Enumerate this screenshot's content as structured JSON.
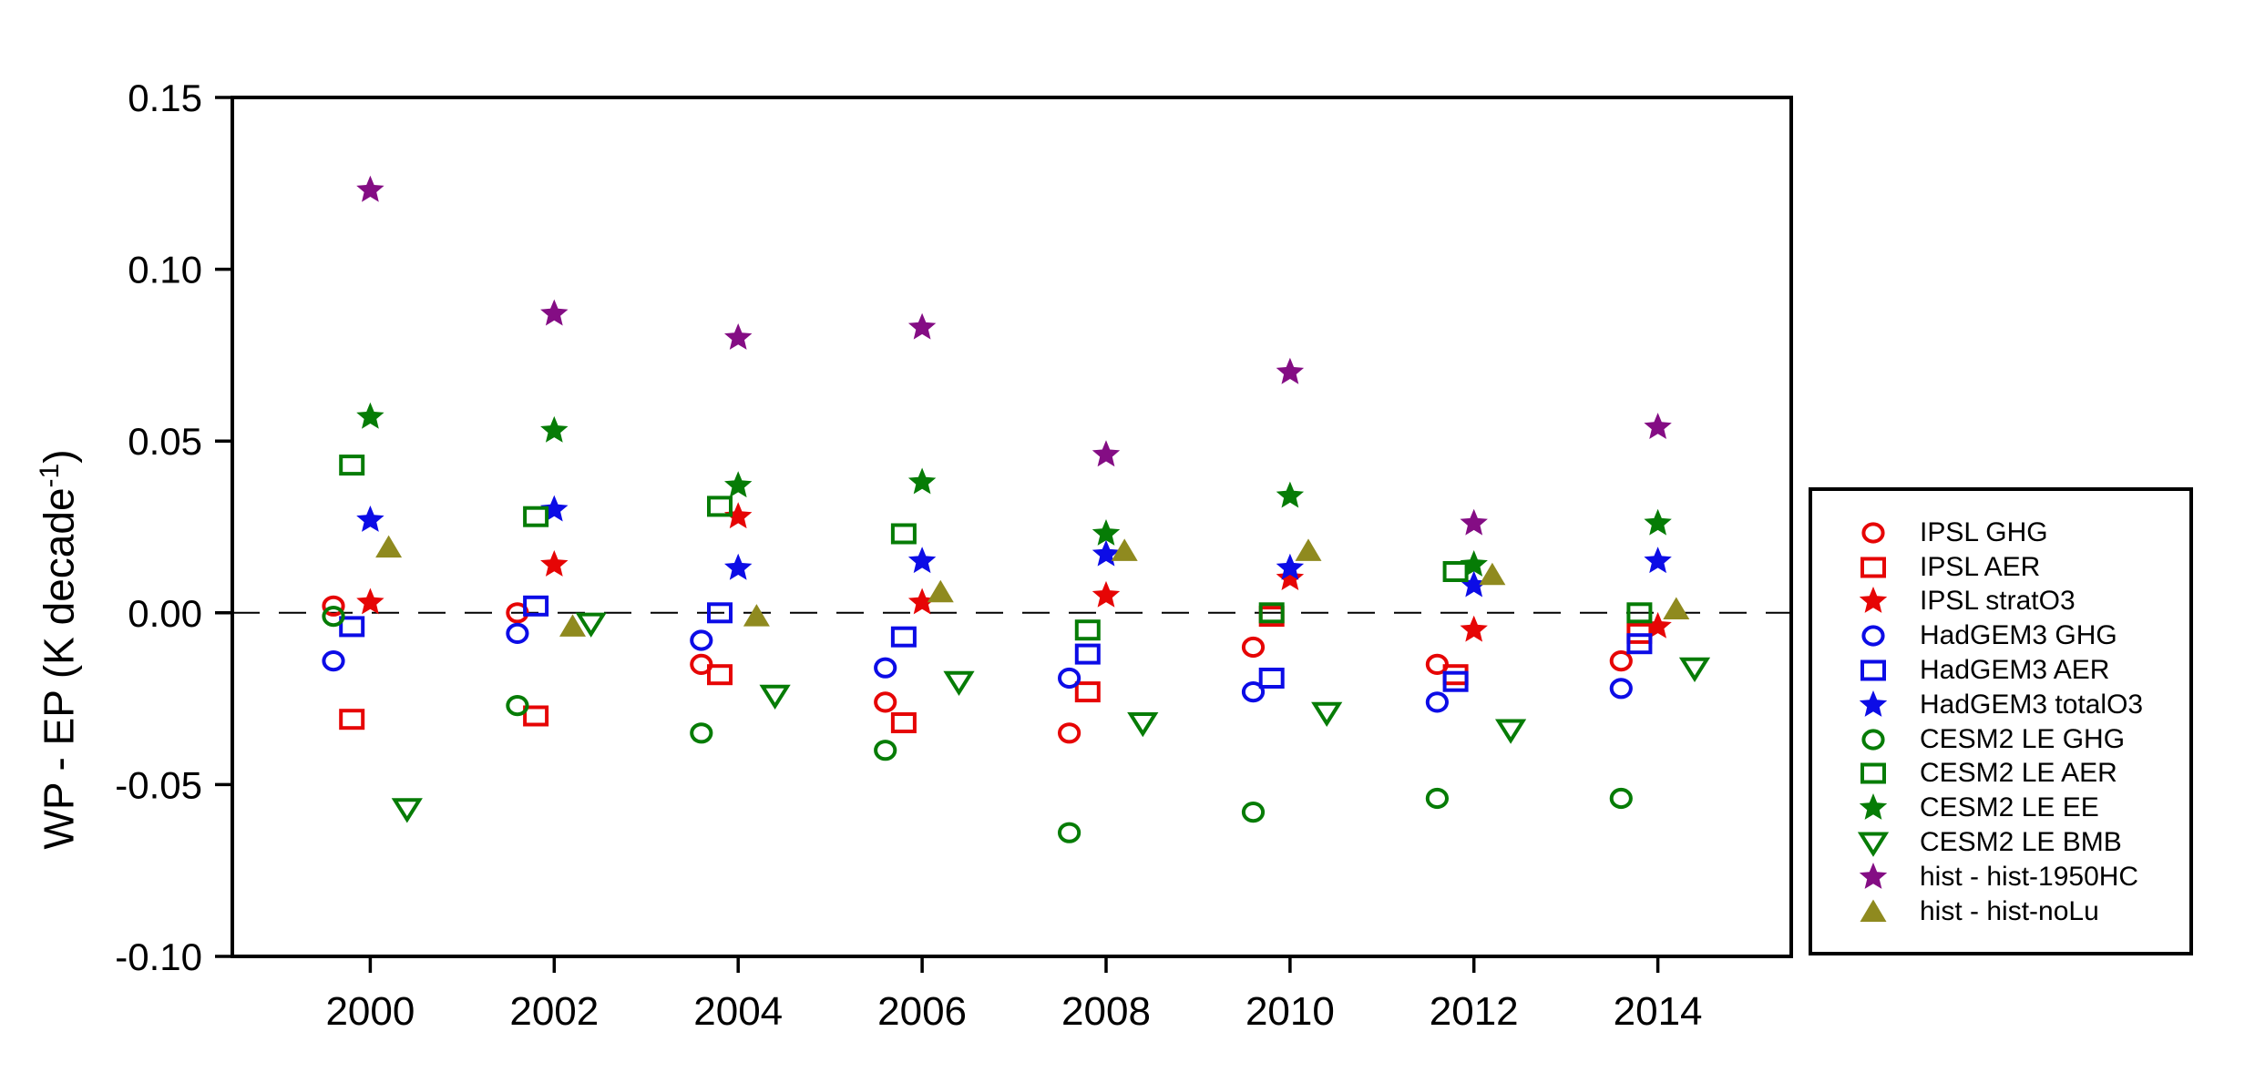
{
  "figure": {
    "y_axis_label_prefix": "WP - EP (K decade",
    "y_axis_label_superscript": "-1",
    "y_axis_label_suffix": ")"
  },
  "chart_data": {
    "type": "scatter",
    "title": "",
    "xlabel": "",
    "ylabel": "WP - EP (K decade^-1)",
    "xlim": [
      1998.5,
      2015.45
    ],
    "ylim": [
      -0.1,
      0.15
    ],
    "grid": false,
    "legend_position": "outside-right",
    "zero_reference_line": {
      "value": 0.0,
      "style": "dashed",
      "color": "#000000"
    },
    "axis_color": "#000000",
    "xticks": [
      {
        "value": 2000,
        "label": "2000"
      },
      {
        "value": 2002,
        "label": "2002"
      },
      {
        "value": 2004,
        "label": "2004"
      },
      {
        "value": 2006,
        "label": "2006"
      },
      {
        "value": 2008,
        "label": "2008"
      },
      {
        "value": 2010,
        "label": "2010"
      },
      {
        "value": 2012,
        "label": "2012"
      },
      {
        "value": 2014,
        "label": "2014"
      }
    ],
    "yticks": [
      {
        "value": 0.15,
        "label": "0.15"
      },
      {
        "value": 0.1,
        "label": "0.10"
      },
      {
        "value": 0.05,
        "label": "0.05"
      },
      {
        "value": 0.0,
        "label": "0.00"
      },
      {
        "value": -0.05,
        "label": "-0.05"
      },
      {
        "value": -0.1,
        "label": "-0.10"
      }
    ],
    "x": [
      2000,
      2002,
      2004,
      2006,
      2008,
      2010,
      2012,
      2014
    ],
    "series": [
      {
        "name": "IPSL GHG",
        "marker": "circle-open",
        "color": "#e60505",
        "x_offset_years": -0.4,
        "values": [
          0.002,
          0.0,
          -0.015,
          -0.026,
          -0.035,
          -0.01,
          -0.015,
          -0.014
        ]
      },
      {
        "name": "IPSL AER",
        "marker": "square-open",
        "color": "#e60505",
        "x_offset_years": -0.2,
        "values": [
          -0.031,
          -0.03,
          -0.018,
          -0.032,
          -0.023,
          -0.001,
          -0.018,
          -0.006
        ]
      },
      {
        "name": "IPSL stratO3",
        "marker": "star-filled",
        "color": "#e60505",
        "x_offset_years": 0.0,
        "values": [
          0.003,
          0.014,
          0.028,
          0.003,
          0.005,
          0.01,
          -0.005,
          -0.004
        ]
      },
      {
        "name": "HadGEM3 GHG",
        "marker": "circle-open",
        "color": "#0c0ce6",
        "x_offset_years": -0.4,
        "values": [
          -0.014,
          -0.006,
          -0.008,
          -0.016,
          -0.019,
          -0.023,
          -0.026,
          -0.022
        ]
      },
      {
        "name": "HadGEM3 AER",
        "marker": "square-open",
        "color": "#0c0ce6",
        "x_offset_years": -0.2,
        "values": [
          -0.004,
          0.002,
          0.0,
          -0.007,
          -0.012,
          -0.019,
          -0.02,
          -0.009
        ]
      },
      {
        "name": "HadGEM3 totalO3",
        "marker": "star-filled",
        "color": "#0c0ce6",
        "x_offset_years": 0.0,
        "values": [
          0.027,
          0.03,
          0.013,
          0.015,
          0.017,
          0.013,
          0.008,
          0.015
        ]
      },
      {
        "name": "CESM2 LE GHG",
        "marker": "circle-open",
        "color": "#067c06",
        "x_offset_years": -0.4,
        "values": [
          -0.001,
          -0.027,
          -0.035,
          -0.04,
          -0.064,
          -0.058,
          -0.054,
          -0.054
        ]
      },
      {
        "name": "CESM2 LE AER",
        "marker": "square-open",
        "color": "#067c06",
        "x_offset_years": -0.2,
        "values": [
          0.043,
          0.028,
          0.031,
          0.023,
          -0.005,
          0.0,
          0.012,
          0.0
        ]
      },
      {
        "name": "CESM2 LE EE",
        "marker": "star-filled",
        "color": "#067c06",
        "x_offset_years": 0.0,
        "values": [
          0.057,
          0.053,
          0.037,
          0.038,
          0.023,
          0.034,
          0.014,
          0.026
        ]
      },
      {
        "name": "CESM2 LE BMB",
        "marker": "triangle-down-open",
        "color": "#067c06",
        "x_offset_years": 0.4,
        "values": [
          -0.057,
          -0.003,
          -0.024,
          -0.02,
          -0.032,
          -0.029,
          -0.034,
          -0.016
        ]
      },
      {
        "name": "hist - hist-1950HC",
        "marker": "star-filled",
        "color": "#840d84",
        "x_offset_years": 0.0,
        "values": [
          0.123,
          0.087,
          0.08,
          0.083,
          0.046,
          0.07,
          0.026,
          0.054
        ]
      },
      {
        "name": "hist - hist-noLu",
        "marker": "triangle-up-filled",
        "color": "#8f8a1f",
        "x_offset_years": 0.2,
        "values": [
          0.019,
          -0.004,
          -0.001,
          0.006,
          0.018,
          0.018,
          0.011,
          0.001
        ]
      }
    ]
  }
}
